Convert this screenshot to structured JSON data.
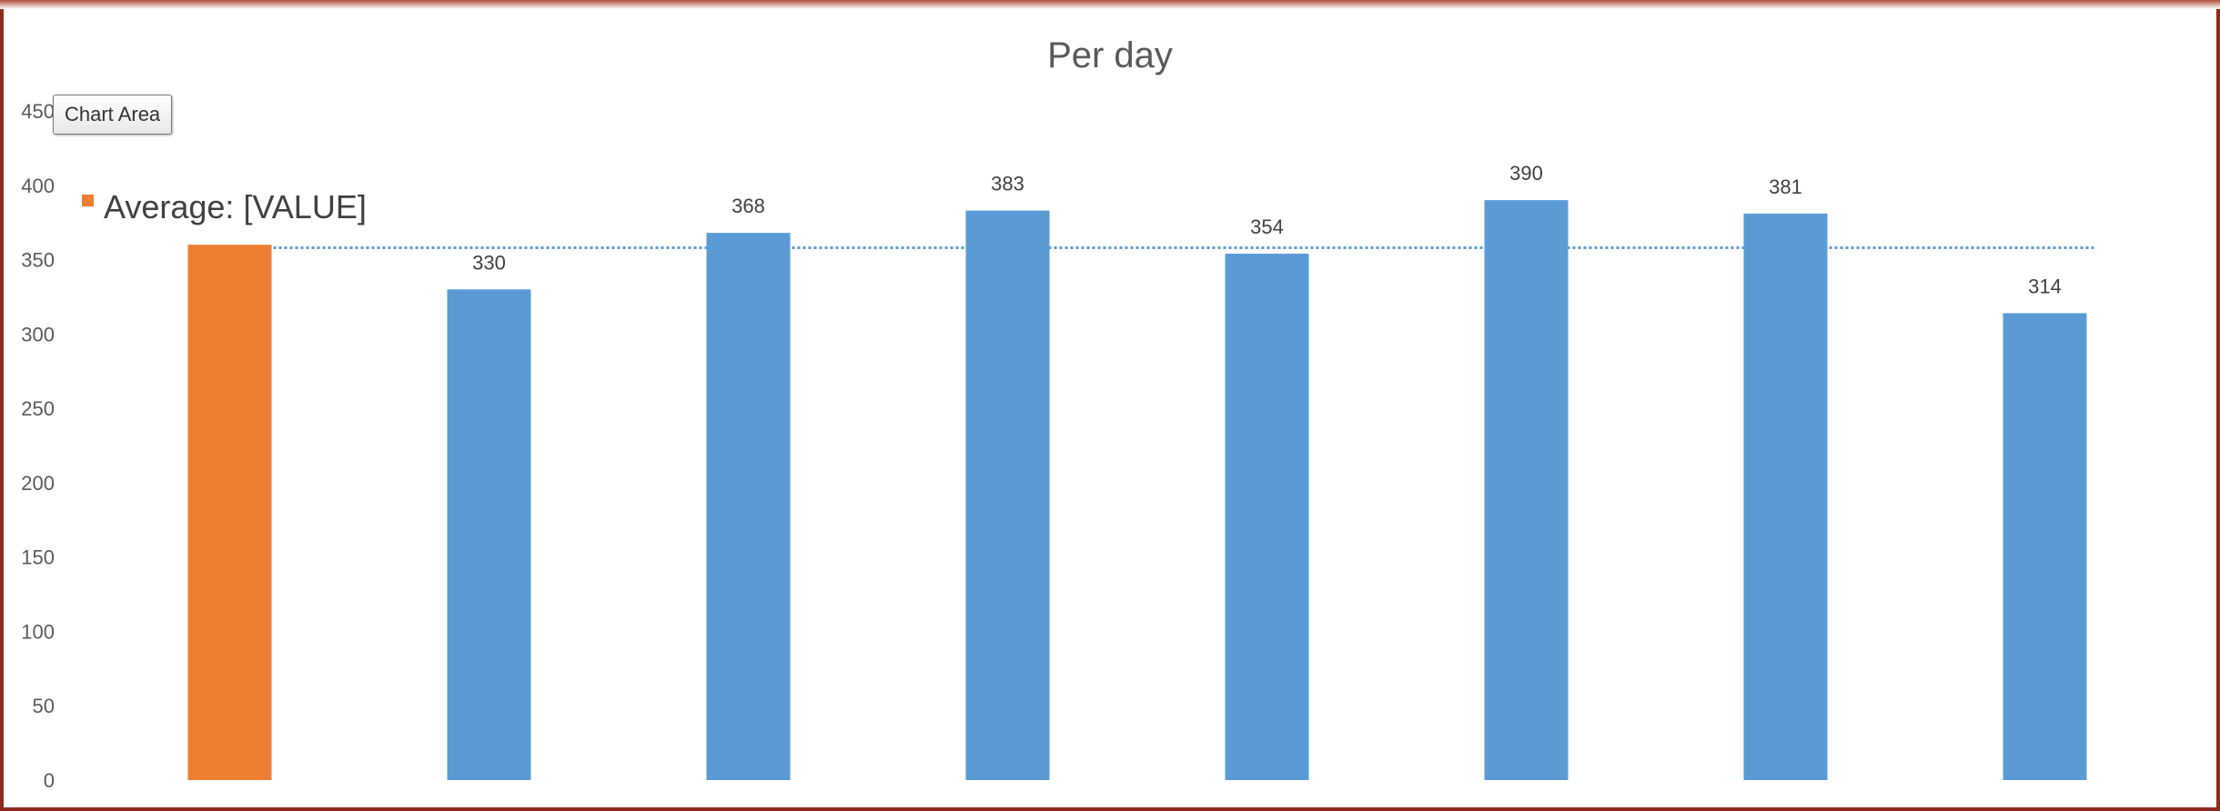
{
  "tooltip": {
    "text": "Chart Area"
  },
  "colors": {
    "bar": "#5b9bd5",
    "highlight": "#ed7d31",
    "average_line": "#5b9bd5",
    "axis_text": "#595959"
  },
  "chart_data": {
    "type": "bar",
    "title": "Per day",
    "xlabel": "",
    "ylabel": "",
    "ylim": [
      0,
      450
    ],
    "yticks": [
      0,
      50,
      100,
      150,
      200,
      250,
      300,
      350,
      400,
      450
    ],
    "grid": false,
    "categories": [
      "",
      "",
      "",
      "",
      "",
      "",
      "",
      ""
    ],
    "values": [
      360,
      330,
      368,
      383,
      354,
      390,
      381,
      314
    ],
    "data_labels": [
      "",
      "330",
      "368",
      "383",
      "354",
      "390",
      "381",
      "314"
    ],
    "highlight_index": 0,
    "average_line": {
      "value": 358,
      "style": "dotted"
    },
    "legend": {
      "entries": [
        "Average: [VALUE]"
      ],
      "placement": "top-left"
    }
  }
}
